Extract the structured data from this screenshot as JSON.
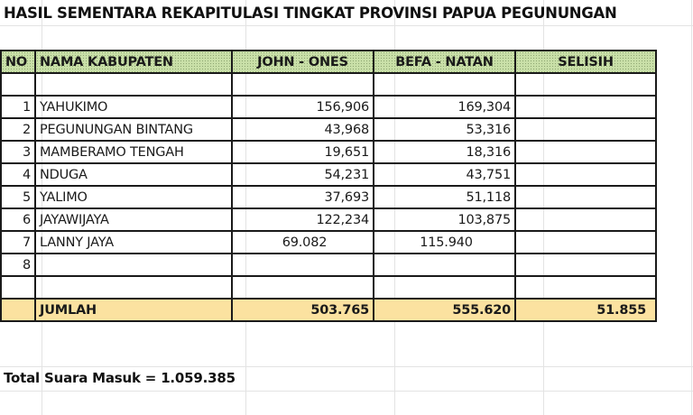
{
  "title": "HASIL SEMENTARA REKAPITULASI TINGKAT PROVINSI PAPUA PEGUNUNGAN",
  "table": {
    "headers": [
      "NO",
      "NAMA KABUPATEN",
      "JOHN - ONES",
      "BEFA - NATAN",
      "SELISIH"
    ],
    "rows": [
      {
        "no": "",
        "name": "",
        "john_ones": "",
        "befa_natan": "",
        "selisih": ""
      },
      {
        "no": "1",
        "name": "YAHUKIMO",
        "john_ones": "156,906",
        "befa_natan": "169,304",
        "selisih": ""
      },
      {
        "no": "2",
        "name": "PEGUNUNGAN BINTANG",
        "john_ones": "43,968",
        "befa_natan": "53,316",
        "selisih": ""
      },
      {
        "no": "3",
        "name": "MAMBERAMO TENGAH",
        "john_ones": "19,651",
        "befa_natan": "18,316",
        "selisih": ""
      },
      {
        "no": "4",
        "name": "NDUGA",
        "john_ones": "54,231",
        "befa_natan": "43,751",
        "selisih": ""
      },
      {
        "no": "5",
        "name": "YALIMO",
        "john_ones": "37,693",
        "befa_natan": "51,118",
        "selisih": ""
      },
      {
        "no": "6",
        "name": "JAYAWIJAYA",
        "john_ones": "122,234",
        "befa_natan": "103,875",
        "selisih": ""
      },
      {
        "no": "7",
        "name": "LANNY JAYA",
        "john_ones": "69.082",
        "befa_natan": "115.940",
        "selisih": ""
      },
      {
        "no": "8",
        "name": "",
        "john_ones": "",
        "befa_natan": "",
        "selisih": ""
      },
      {
        "no": "",
        "name": "",
        "john_ones": "",
        "befa_natan": "",
        "selisih": ""
      }
    ],
    "total": {
      "no": "",
      "label": "JUMLAH",
      "john_ones": "503.765",
      "befa_natan": "555.620",
      "selisih": "51.855"
    }
  },
  "footer": "Total Suara Masuk = 1.059.385",
  "colors": {
    "header_bg": "#c9e0a8",
    "total_bg": "#fbe2a0",
    "border": "#1a1a1a",
    "gridline": "#e3e3e3"
  }
}
